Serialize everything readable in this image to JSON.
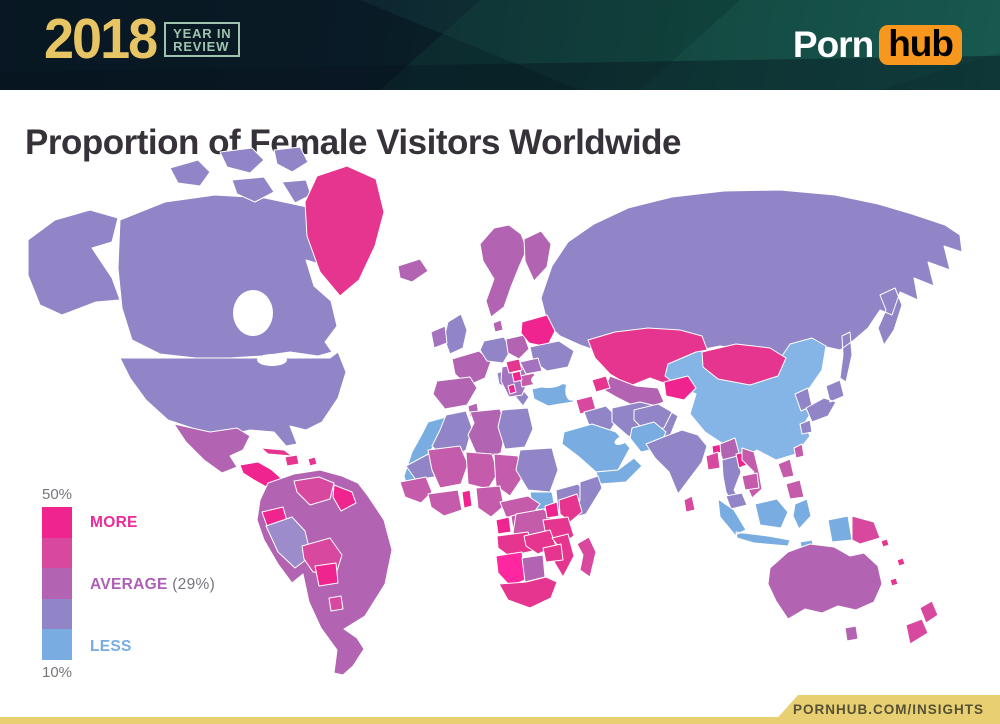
{
  "header": {
    "year": "2018",
    "review_line1": "YEAR IN",
    "review_line2": "REVIEW",
    "brand_part1": "Porn",
    "brand_part2": "hub",
    "colors": {
      "gold": "#e8c564",
      "mint": "#9fc3ae",
      "orange": "#f7971d"
    }
  },
  "title": "Proportion of Female Visitors Worldwide",
  "legend": {
    "top_label": "50%",
    "bottom_label": "10%",
    "more_label": "MORE",
    "average_label": "AVERAGE",
    "average_value": "(29%)",
    "less_label": "LESS",
    "scale_colors": [
      "#f0248f",
      "#d9489f",
      "#b263b2",
      "#9184c7",
      "#79ade2"
    ],
    "label_colors": {
      "more": "#ee2a98",
      "average": "#ad5fb5",
      "less": "#76abe3",
      "ticks": "#77747c"
    }
  },
  "footer": {
    "link": "PORNHUB.COM/INSIGHTS",
    "bar_color": "#e7cf72",
    "text_color": "#565034"
  },
  "map": {
    "description": "World choropleth: share of female visitors per country, pink = more, purple = average (29%), blue = less",
    "region_colors": {
      "alaska": "#9184c7",
      "canada": "#9184c7",
      "arctic-islands": "#9184c7",
      "greenland": "#e5358f",
      "iceland": "#b263b2",
      "usa": "#9184c7",
      "mexico": "#b263b2",
      "central-america": "#f0248f",
      "caribbean": "#e5358f",
      "south-america": "#b263b2",
      "venezuela": "#d9489f",
      "guyanas": "#f0248f",
      "ecuador": "#f0248f",
      "peru": "#9c8ccb",
      "bolivia": "#d9489f",
      "paraguay": "#f0248f",
      "uruguay": "#d9489f",
      "norway-sweden": "#b263b2",
      "finland": "#b263b2",
      "denmark": "#b263b2",
      "uk": "#9184c7",
      "ireland": "#a472be",
      "france": "#b263b2",
      "iberia": "#b263b2",
      "germany": "#9184c7",
      "italy": "#9184c7",
      "poland": "#b263b2",
      "baltics-belarus": "#f0248f",
      "ukraine": "#9184c7",
      "balkans": "#a472be",
      "hungary": "#e5358f",
      "romania": "#a472be",
      "bulgaria": "#c45bab",
      "serbia": "#f0248f",
      "albania": "#f0248f",
      "russia": "#9184c7",
      "kazakhstan": "#e5358f",
      "uzbekistan-turkmenistan": "#b263b2",
      "kyrgyzstan-tajikistan": "#f0248f",
      "caucasus": "#e5358f",
      "turkey": "#79ade2",
      "syria-levant": "#d9489f",
      "iraq": "#9184c7",
      "iran": "#9184c7",
      "saudi-arabia": "#79ade2",
      "yemen-oman": "#79ade2",
      "afghanistan": "#9184c7",
      "pakistan": "#79ade2",
      "india": "#9184c7",
      "sri-lanka": "#d9489f",
      "china": "#85b5e7",
      "mongolia": "#e5358f",
      "bhutan": "#f0248f",
      "bangladesh": "#d9489f",
      "myanmar": "#b263b2",
      "thailand": "#9184c7",
      "laos": "#f0248f",
      "vietnam": "#c45bab",
      "cambodia": "#c45bab",
      "malaysia": "#9184c7",
      "indonesia": "#79ade2",
      "papua-new-guinea": "#d9489f",
      "philippines": "#c45bab",
      "taiwan": "#c45bab",
      "south-korea": "#9184c7",
      "japan": "#9184c7",
      "morocco-wsahara": "#79ade2",
      "algeria": "#9184c7",
      "tunisia": "#b263b2",
      "libya": "#b263b2",
      "egypt": "#9184c7",
      "mauritania": "#9184c7",
      "mali": "#c45bab",
      "niger": "#c45bab",
      "chad": "#c45bab",
      "sudan": "#9184c7",
      "south-sudan": "#79ade2",
      "ethiopia": "#9184c7",
      "somalia": "#9184c7",
      "senegal-guinea": "#c45bab",
      "ivory-ghana": "#c45bab",
      "benin": "#f0248f",
      "nigeria": "#c45bab",
      "cameroon-car": "#c45bab",
      "gabon": "#f0248f",
      "congo": "#c45bab",
      "drc": "#c45bab",
      "uganda": "#f0248f",
      "kenya": "#e5358f",
      "tanzania": "#e5358f",
      "angola": "#e5358f",
      "zambia": "#e5358f",
      "mozambique": "#e5358f",
      "zimbabwe": "#e5358f",
      "namibia": "#ff27a0",
      "botswana": "#b263b2",
      "south-africa": "#e5358f",
      "madagascar": "#d9489f",
      "australia": "#b263b2",
      "tasmania": "#b263b2",
      "new-zealand": "#d9489f",
      "pacific-islands": "#e5358f"
    }
  }
}
